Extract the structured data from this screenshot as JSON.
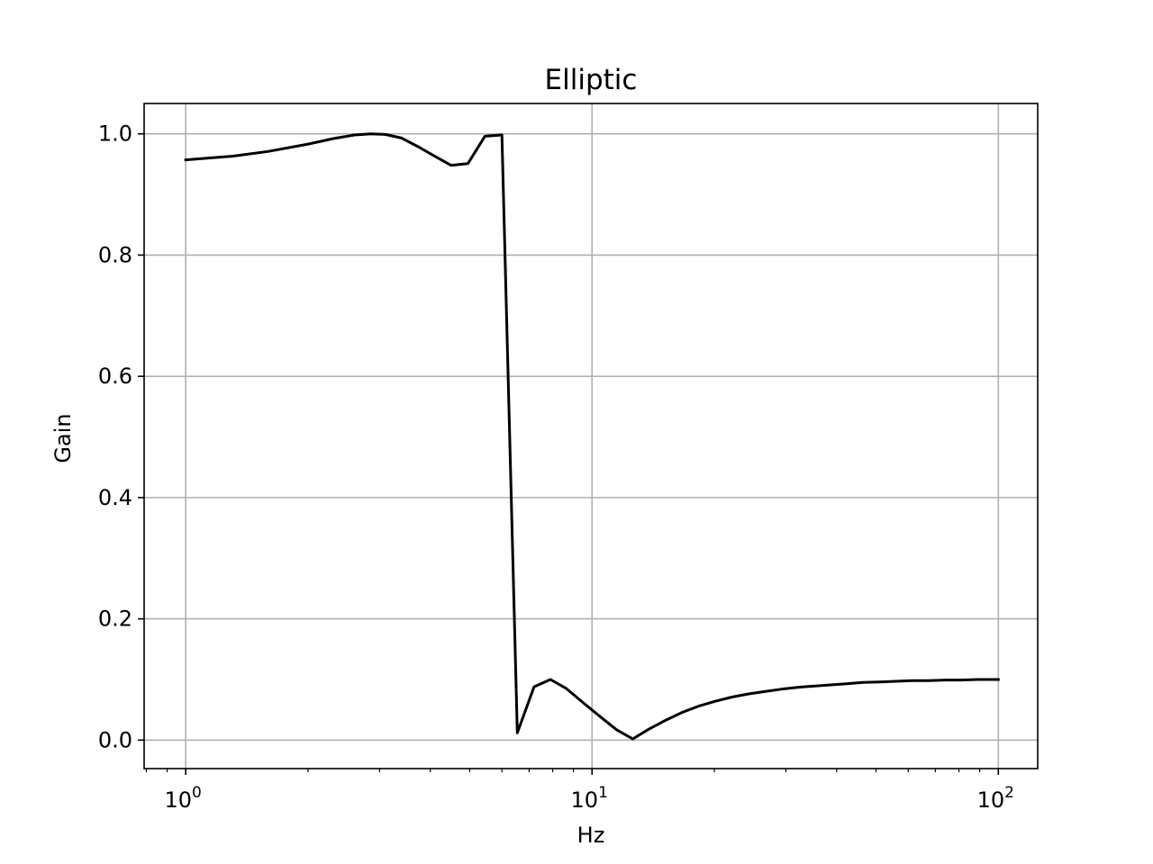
{
  "chart_data": {
    "type": "line",
    "title": "Elliptic",
    "xlabel": "Hz",
    "ylabel": "Gain",
    "xscale": "log",
    "xlim": [
      0.79,
      125
    ],
    "ylim": [
      -0.047,
      1.05
    ],
    "grid": true,
    "x_ticks": [
      {
        "base": "10",
        "exp": "0",
        "value": 1
      },
      {
        "base": "10",
        "exp": "1",
        "value": 10
      },
      {
        "base": "10",
        "exp": "2",
        "value": 100
      }
    ],
    "y_ticks": [
      {
        "label": "0.0",
        "value": 0.0
      },
      {
        "label": "0.2",
        "value": 0.2
      },
      {
        "label": "0.4",
        "value": 0.4
      },
      {
        "label": "0.6",
        "value": 0.6
      },
      {
        "label": "0.8",
        "value": 0.8
      },
      {
        "label": "1.0",
        "value": 1.0
      }
    ],
    "series": [
      {
        "color": "#000000",
        "x": [
          1.0,
          1.3,
          1.6,
          2.0,
          2.3,
          2.6,
          2.85,
          3.1,
          3.4,
          3.75,
          4.1,
          4.5,
          4.95,
          5.45,
          6.0,
          6.55,
          7.2,
          7.9,
          8.65,
          9.5,
          10.5,
          11.5,
          12.6,
          13.8,
          15.2,
          16.7,
          18.3,
          20.1,
          22.1,
          24.2,
          26.6,
          29.2,
          32.0,
          35.1,
          38.6,
          42.3,
          46.4,
          51.0,
          55.9,
          61.4,
          67.4,
          74.0,
          81.2,
          89.1,
          100.0
        ],
        "y": [
          0.957,
          0.963,
          0.971,
          0.983,
          0.992,
          0.998,
          1.0,
          0.999,
          0.993,
          0.978,
          0.963,
          0.948,
          0.951,
          0.996,
          0.998,
          0.012,
          0.088,
          0.1,
          0.085,
          0.062,
          0.038,
          0.017,
          0.002,
          0.018,
          0.033,
          0.046,
          0.056,
          0.064,
          0.071,
          0.076,
          0.08,
          0.084,
          0.087,
          0.089,
          0.091,
          0.093,
          0.095,
          0.096,
          0.097,
          0.098,
          0.098,
          0.099,
          0.099,
          0.1,
          0.1
        ]
      }
    ]
  }
}
